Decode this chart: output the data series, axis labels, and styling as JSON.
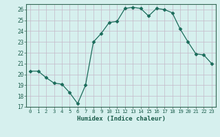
{
  "x": [
    0,
    1,
    2,
    3,
    4,
    5,
    6,
    7,
    8,
    9,
    10,
    11,
    12,
    13,
    14,
    15,
    16,
    17,
    18,
    19,
    20,
    21,
    22,
    23
  ],
  "y": [
    20.3,
    20.3,
    19.7,
    19.2,
    19.1,
    18.3,
    17.3,
    19.0,
    23.0,
    23.8,
    24.8,
    24.9,
    26.1,
    26.2,
    26.1,
    25.4,
    26.1,
    26.0,
    25.7,
    24.2,
    23.0,
    21.9,
    21.8,
    21.0
  ],
  "xlabel": "Humidex (Indice chaleur)",
  "ylim": [
    17,
    26.5
  ],
  "xlim": [
    -0.5,
    23.5
  ],
  "yticks": [
    17,
    18,
    19,
    20,
    21,
    22,
    23,
    24,
    25,
    26
  ],
  "xticks": [
    0,
    1,
    2,
    3,
    4,
    5,
    6,
    7,
    8,
    9,
    10,
    11,
    12,
    13,
    14,
    15,
    16,
    17,
    18,
    19,
    20,
    21,
    22,
    23
  ],
  "line_color": "#1a6b5a",
  "marker": "D",
  "marker_size": 2.5,
  "bg_color": "#d6f0ee",
  "grid_color": "#c4b8c8",
  "fig_bg": "#d6f0ee",
  "tick_label_color": "#1a5c4a",
  "xlabel_color": "#1a5c4a",
  "spine_color": "#336655"
}
